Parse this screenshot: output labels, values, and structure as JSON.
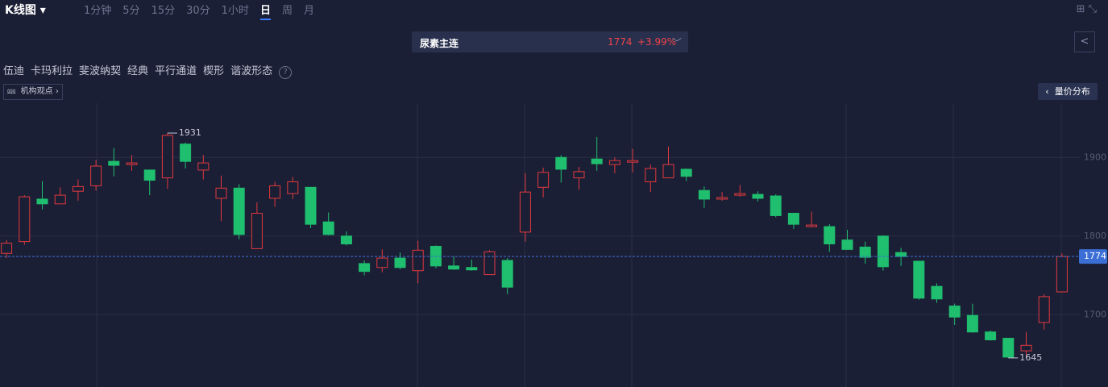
{
  "header": {
    "chart_type": "K线图",
    "periods": [
      "1分钟",
      "5分",
      "15分",
      "30分",
      "1小时",
      "日",
      "周",
      "月"
    ],
    "active_period": 5,
    "symbol": "尿素主连",
    "price": "1774",
    "change": "+3.99%",
    "tools": [
      "伍迪",
      "卡玛利拉",
      "斐波纳契",
      "经典",
      "平行通道",
      "楔形",
      "谐波形态"
    ],
    "institution_view": "机构观点",
    "volume_profile": "量价分布"
  },
  "chart_data": {
    "type": "candlestick",
    "open": [
      1778,
      1793,
      1847,
      1841,
      1857,
      1864,
      1895,
      1891,
      1884,
      1874,
      1917,
      1884,
      1848,
      1861,
      1784,
      1848,
      1854,
      1862,
      1818,
      1800,
      1765,
      1760,
      1772,
      1756,
      1787,
      1762,
      1760,
      1751,
      1769,
      1805,
      1862,
      1900,
      1874,
      1898,
      1891,
      1894,
      1869,
      1874,
      1885,
      1858,
      1847,
      1852,
      1853,
      1851,
      1829,
      1812,
      1812,
      1795,
      1786,
      1800,
      1779,
      1768,
      1736,
      1711,
      1699,
      1678,
      1670,
      1654,
      1690,
      1729
    ],
    "high": [
      1795,
      1852,
      1870,
      1862,
      1872,
      1897,
      1912,
      1903,
      1884,
      1931,
      1919,
      1903,
      1877,
      1866,
      1843,
      1869,
      1875,
      1862,
      1830,
      1806,
      1769,
      1783,
      1779,
      1794,
      1788,
      1774,
      1770,
      1782,
      1772,
      1880,
      1887,
      1903,
      1888,
      1926,
      1900,
      1911,
      1891,
      1914,
      1886,
      1863,
      1856,
      1865,
      1857,
      1853,
      1829,
      1831,
      1815,
      1808,
      1793,
      1801,
      1785,
      1768,
      1740,
      1714,
      1714,
      1680,
      1670,
      1678,
      1726,
      1778
    ],
    "low": [
      1772,
      1789,
      1834,
      1841,
      1845,
      1858,
      1876,
      1883,
      1852,
      1860,
      1886,
      1872,
      1819,
      1796,
      1784,
      1837,
      1847,
      1810,
      1801,
      1788,
      1750,
      1754,
      1758,
      1740,
      1759,
      1757,
      1756,
      1751,
      1726,
      1793,
      1849,
      1868,
      1859,
      1883,
      1880,
      1881,
      1856,
      1874,
      1870,
      1836,
      1845,
      1850,
      1844,
      1824,
      1809,
      1811,
      1780,
      1783,
      1765,
      1756,
      1762,
      1719,
      1715,
      1687,
      1677,
      1667,
      1645,
      1648,
      1681,
      1728
    ],
    "close": [
      1791,
      1850,
      1841,
      1852,
      1863,
      1889,
      1890,
      1893,
      1871,
      1928,
      1895,
      1893,
      1861,
      1802,
      1829,
      1864,
      1869,
      1815,
      1802,
      1790,
      1755,
      1772,
      1760,
      1782,
      1762,
      1758,
      1757,
      1780,
      1735,
      1856,
      1881,
      1885,
      1882,
      1892,
      1896,
      1896,
      1886,
      1891,
      1876,
      1847,
      1849,
      1854,
      1848,
      1826,
      1815,
      1814,
      1790,
      1783,
      1773,
      1761,
      1774,
      1721,
      1720,
      1697,
      1678,
      1668,
      1646,
      1661,
      1723,
      1774
    ],
    "up_color": "#e0393e",
    "down_color": "#1fbf6f",
    "ylim": [
      1608,
      1969
    ],
    "yticks": [
      1700,
      1800,
      1900
    ],
    "grid": true,
    "last_price": 1774,
    "max_label": 1931,
    "min_label": 1645
  }
}
